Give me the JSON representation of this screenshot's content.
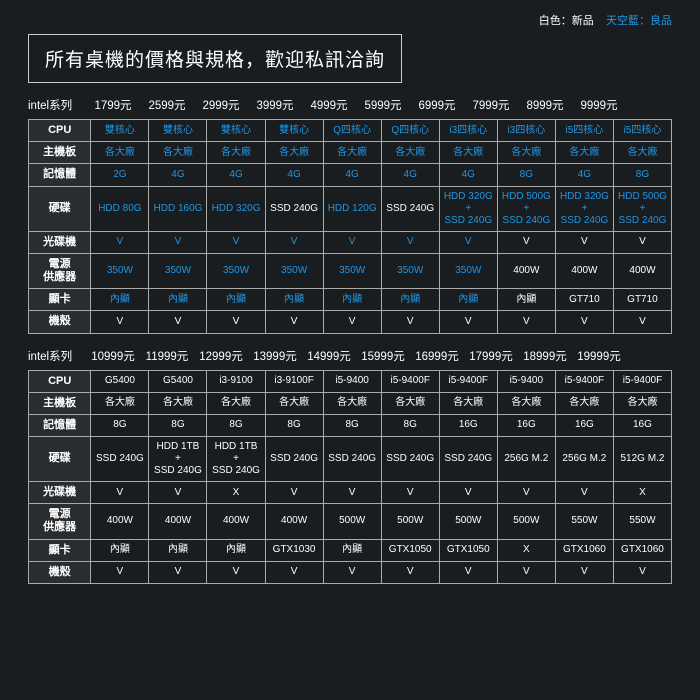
{
  "colors": {
    "background": "#1a1d1f",
    "text_white": "#ffffff",
    "text_blue": "#2196e3",
    "border": "#aaaaaa",
    "header_bg": "#2a2d30"
  },
  "legend": {
    "white": "白色：新品",
    "blue": "天空藍：良品"
  },
  "title": "所有桌機的價格與規格，歡迎私訊洽詢",
  "series_label": "intel系列",
  "price_suffix": "元",
  "row_labels": {
    "cpu": "CPU",
    "mb": "主機板",
    "ram": "記憶體",
    "hdd": "硬碟",
    "odd": "光碟機",
    "psu": "電源\n供應器",
    "gpu": "顯卡",
    "case": "機殼"
  },
  "table1": {
    "prices": [
      "1799",
      "2599",
      "2999",
      "3999",
      "4999",
      "5999",
      "6999",
      "7999",
      "8999",
      "9999"
    ],
    "cpu": [
      {
        "t": "雙核心",
        "c": "blue"
      },
      {
        "t": "雙核心",
        "c": "blue"
      },
      {
        "t": "雙核心",
        "c": "blue"
      },
      {
        "t": "雙核心",
        "c": "blue"
      },
      {
        "t": "Q四核心",
        "c": "blue"
      },
      {
        "t": "Q四核心",
        "c": "blue"
      },
      {
        "t": "i3四核心",
        "c": "blue"
      },
      {
        "t": "i3四核心",
        "c": "blue"
      },
      {
        "t": "i5四核心",
        "c": "blue"
      },
      {
        "t": "i5四核心",
        "c": "blue"
      }
    ],
    "mb": [
      {
        "t": "各大廠",
        "c": "blue"
      },
      {
        "t": "各大廠",
        "c": "blue"
      },
      {
        "t": "各大廠",
        "c": "blue"
      },
      {
        "t": "各大廠",
        "c": "blue"
      },
      {
        "t": "各大廠",
        "c": "blue"
      },
      {
        "t": "各大廠",
        "c": "blue"
      },
      {
        "t": "各大廠",
        "c": "blue"
      },
      {
        "t": "各大廠",
        "c": "blue"
      },
      {
        "t": "各大廠",
        "c": "blue"
      },
      {
        "t": "各大廠",
        "c": "blue"
      }
    ],
    "ram": [
      {
        "t": "2G",
        "c": "blue"
      },
      {
        "t": "4G",
        "c": "blue"
      },
      {
        "t": "4G",
        "c": "blue"
      },
      {
        "t": "4G",
        "c": "blue"
      },
      {
        "t": "4G",
        "c": "blue"
      },
      {
        "t": "4G",
        "c": "blue"
      },
      {
        "t": "4G",
        "c": "blue"
      },
      {
        "t": "8G",
        "c": "blue"
      },
      {
        "t": "4G",
        "c": "blue"
      },
      {
        "t": "8G",
        "c": "blue"
      }
    ],
    "hdd": [
      {
        "t": "HDD 80G",
        "c": "blue"
      },
      {
        "t": "HDD 160G",
        "c": "blue"
      },
      {
        "t": "HDD 320G",
        "c": "blue"
      },
      {
        "t": "SSD 240G",
        "c": "white"
      },
      {
        "t": "HDD 120G",
        "c": "blue"
      },
      {
        "t": "SSD 240G",
        "c": "white"
      },
      {
        "t": "HDD 320G\n+\nSSD 240G",
        "c": "blue"
      },
      {
        "t": "HDD 500G\n+\nSSD 240G",
        "c": "blue"
      },
      {
        "t": "HDD 320G\n+\nSSD 240G",
        "c": "blue"
      },
      {
        "t": "HDD 500G\n+\nSSD 240G",
        "c": "blue"
      }
    ],
    "odd": [
      {
        "t": "V",
        "c": "blue"
      },
      {
        "t": "V",
        "c": "blue"
      },
      {
        "t": "V",
        "c": "blue"
      },
      {
        "t": "V",
        "c": "blue"
      },
      {
        "t": "V",
        "c": "blue"
      },
      {
        "t": "V",
        "c": "blue"
      },
      {
        "t": "V",
        "c": "blue"
      },
      {
        "t": "V",
        "c": "white"
      },
      {
        "t": "V",
        "c": "white"
      },
      {
        "t": "V",
        "c": "white"
      }
    ],
    "psu": [
      {
        "t": "350W",
        "c": "blue"
      },
      {
        "t": "350W",
        "c": "blue"
      },
      {
        "t": "350W",
        "c": "blue"
      },
      {
        "t": "350W",
        "c": "blue"
      },
      {
        "t": "350W",
        "c": "blue"
      },
      {
        "t": "350W",
        "c": "blue"
      },
      {
        "t": "350W",
        "c": "blue"
      },
      {
        "t": "400W",
        "c": "white"
      },
      {
        "t": "400W",
        "c": "white"
      },
      {
        "t": "400W",
        "c": "white"
      }
    ],
    "gpu": [
      {
        "t": "內顯",
        "c": "blue"
      },
      {
        "t": "內顯",
        "c": "blue"
      },
      {
        "t": "內顯",
        "c": "blue"
      },
      {
        "t": "內顯",
        "c": "blue"
      },
      {
        "t": "內顯",
        "c": "blue"
      },
      {
        "t": "內顯",
        "c": "blue"
      },
      {
        "t": "內顯",
        "c": "blue"
      },
      {
        "t": "內顯",
        "c": "white"
      },
      {
        "t": "GT710",
        "c": "white"
      },
      {
        "t": "GT710",
        "c": "white"
      }
    ],
    "case": [
      {
        "t": "V",
        "c": "white"
      },
      {
        "t": "V",
        "c": "white"
      },
      {
        "t": "V",
        "c": "white"
      },
      {
        "t": "V",
        "c": "white"
      },
      {
        "t": "V",
        "c": "white"
      },
      {
        "t": "V",
        "c": "white"
      },
      {
        "t": "V",
        "c": "white"
      },
      {
        "t": "V",
        "c": "white"
      },
      {
        "t": "V",
        "c": "white"
      },
      {
        "t": "V",
        "c": "white"
      }
    ]
  },
  "table2": {
    "prices": [
      "10999",
      "11999",
      "12999",
      "13999",
      "14999",
      "15999",
      "16999",
      "17999",
      "18999",
      "19999"
    ],
    "cpu": [
      {
        "t": "G5400",
        "c": "white"
      },
      {
        "t": "G5400",
        "c": "white"
      },
      {
        "t": "i3-9100",
        "c": "white"
      },
      {
        "t": "i3-9100F",
        "c": "white"
      },
      {
        "t": "i5-9400",
        "c": "white"
      },
      {
        "t": "i5-9400F",
        "c": "white"
      },
      {
        "t": "i5-9400F",
        "c": "white"
      },
      {
        "t": "i5-9400",
        "c": "white"
      },
      {
        "t": "i5-9400F",
        "c": "white"
      },
      {
        "t": "i5-9400F",
        "c": "white"
      }
    ],
    "mb": [
      {
        "t": "各大廠",
        "c": "white"
      },
      {
        "t": "各大廠",
        "c": "white"
      },
      {
        "t": "各大廠",
        "c": "white"
      },
      {
        "t": "各大廠",
        "c": "white"
      },
      {
        "t": "各大廠",
        "c": "white"
      },
      {
        "t": "各大廠",
        "c": "white"
      },
      {
        "t": "各大廠",
        "c": "white"
      },
      {
        "t": "各大廠",
        "c": "white"
      },
      {
        "t": "各大廠",
        "c": "white"
      },
      {
        "t": "各大廠",
        "c": "white"
      }
    ],
    "ram": [
      {
        "t": "8G",
        "c": "white"
      },
      {
        "t": "8G",
        "c": "white"
      },
      {
        "t": "8G",
        "c": "white"
      },
      {
        "t": "8G",
        "c": "white"
      },
      {
        "t": "8G",
        "c": "white"
      },
      {
        "t": "8G",
        "c": "white"
      },
      {
        "t": "16G",
        "c": "white"
      },
      {
        "t": "16G",
        "c": "white"
      },
      {
        "t": "16G",
        "c": "white"
      },
      {
        "t": "16G",
        "c": "white"
      }
    ],
    "hdd": [
      {
        "t": "SSD 240G",
        "c": "white"
      },
      {
        "t": "HDD 1TB\n+\nSSD 240G",
        "c": "white"
      },
      {
        "t": "HDD 1TB\n+\nSSD 240G",
        "c": "white"
      },
      {
        "t": "SSD 240G",
        "c": "white"
      },
      {
        "t": "SSD 240G",
        "c": "white"
      },
      {
        "t": "SSD 240G",
        "c": "white"
      },
      {
        "t": "SSD 240G",
        "c": "white"
      },
      {
        "t": "256G M.2",
        "c": "white"
      },
      {
        "t": "256G M.2",
        "c": "white"
      },
      {
        "t": "512G M.2",
        "c": "white"
      }
    ],
    "odd": [
      {
        "t": "V",
        "c": "white"
      },
      {
        "t": "V",
        "c": "white"
      },
      {
        "t": "X",
        "c": "white"
      },
      {
        "t": "V",
        "c": "white"
      },
      {
        "t": "V",
        "c": "white"
      },
      {
        "t": "V",
        "c": "white"
      },
      {
        "t": "V",
        "c": "white"
      },
      {
        "t": "V",
        "c": "white"
      },
      {
        "t": "V",
        "c": "white"
      },
      {
        "t": "X",
        "c": "white"
      }
    ],
    "psu": [
      {
        "t": "400W",
        "c": "white"
      },
      {
        "t": "400W",
        "c": "white"
      },
      {
        "t": "400W",
        "c": "white"
      },
      {
        "t": "400W",
        "c": "white"
      },
      {
        "t": "500W",
        "c": "white"
      },
      {
        "t": "500W",
        "c": "white"
      },
      {
        "t": "500W",
        "c": "white"
      },
      {
        "t": "500W",
        "c": "white"
      },
      {
        "t": "550W",
        "c": "white"
      },
      {
        "t": "550W",
        "c": "white"
      }
    ],
    "gpu": [
      {
        "t": "內顯",
        "c": "white"
      },
      {
        "t": "內顯",
        "c": "white"
      },
      {
        "t": "內顯",
        "c": "white"
      },
      {
        "t": "GTX1030",
        "c": "white"
      },
      {
        "t": "內顯",
        "c": "white"
      },
      {
        "t": "GTX1050",
        "c": "white"
      },
      {
        "t": "GTX1050",
        "c": "white"
      },
      {
        "t": "X",
        "c": "white"
      },
      {
        "t": "GTX1060",
        "c": "white"
      },
      {
        "t": "GTX1060",
        "c": "white"
      }
    ],
    "case": [
      {
        "t": "V",
        "c": "white"
      },
      {
        "t": "V",
        "c": "white"
      },
      {
        "t": "V",
        "c": "white"
      },
      {
        "t": "V",
        "c": "white"
      },
      {
        "t": "V",
        "c": "white"
      },
      {
        "t": "V",
        "c": "white"
      },
      {
        "t": "V",
        "c": "white"
      },
      {
        "t": "V",
        "c": "white"
      },
      {
        "t": "V",
        "c": "white"
      },
      {
        "t": "V",
        "c": "white"
      }
    ]
  }
}
